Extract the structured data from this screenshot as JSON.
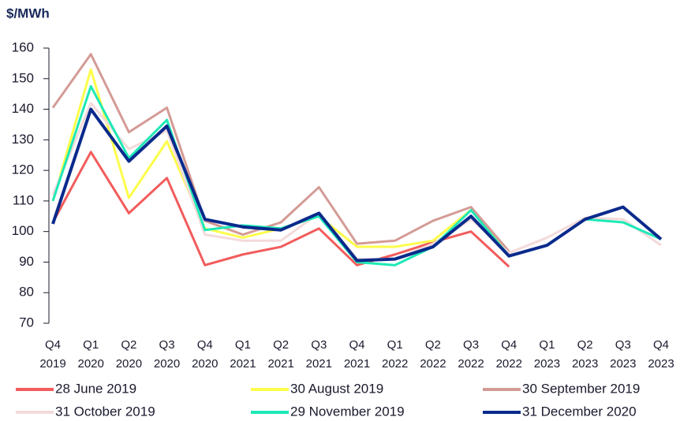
{
  "chart_data": {
    "type": "line",
    "ylabel": "$/MWh",
    "categories": [
      "Q4 2019",
      "Q1 2020",
      "Q2 2020",
      "Q3 2020",
      "Q4 2020",
      "Q1 2021",
      "Q2 2021",
      "Q3 2021",
      "Q4 2021",
      "Q1 2022",
      "Q2 2022",
      "Q3 2022",
      "Q4 2022",
      "Q1 2023",
      "Q2 2023",
      "Q3 2023",
      "Q4 2023"
    ],
    "ylim": [
      70,
      160
    ],
    "yticks": [
      70,
      80,
      90,
      100,
      110,
      120,
      130,
      140,
      150,
      160
    ],
    "series": [
      {
        "name": "28 June 2019",
        "color": "#f25c5c",
        "values": [
          103,
          126,
          106,
          117.5,
          89,
          92.5,
          95,
          101,
          89,
          92.5,
          96.5,
          100,
          88.5,
          null,
          null,
          null,
          null
        ]
      },
      {
        "name": "30 August 2019",
        "color": "#fdfd4a",
        "values": [
          110,
          153,
          111,
          129.5,
          101,
          98,
          101,
          105,
          95,
          95,
          97,
          107,
          93,
          null,
          null,
          null,
          null
        ]
      },
      {
        "name": "30 September 2019",
        "color": "#d49b95",
        "values": [
          140.5,
          158,
          132.5,
          140.5,
          103.5,
          99,
          103,
          114.5,
          96,
          97,
          103.5,
          108,
          93.5,
          null,
          null,
          null,
          null
        ]
      },
      {
        "name": "31 October 2019",
        "color": "#f3dada",
        "values": [
          112,
          142,
          127,
          133,
          99,
          97,
          97,
          106,
          91,
          91,
          96,
          104,
          93,
          98,
          104.5,
          104,
          95.5
        ]
      },
      {
        "name": "29 November 2019",
        "color": "#1de9b6",
        "values": [
          110,
          147.5,
          124,
          136.5,
          100.5,
          102,
          101,
          105,
          90,
          89,
          95,
          107,
          92,
          95.5,
          104,
          103,
          97.5
        ]
      },
      {
        "name": "31 December 2020",
        "color": "#0a2a8c",
        "values": [
          102.5,
          140,
          123,
          134.5,
          104,
          101.5,
          100.5,
          106,
          90.5,
          91,
          95,
          105,
          92,
          95.5,
          104,
          108,
          97.5
        ]
      }
    ]
  }
}
